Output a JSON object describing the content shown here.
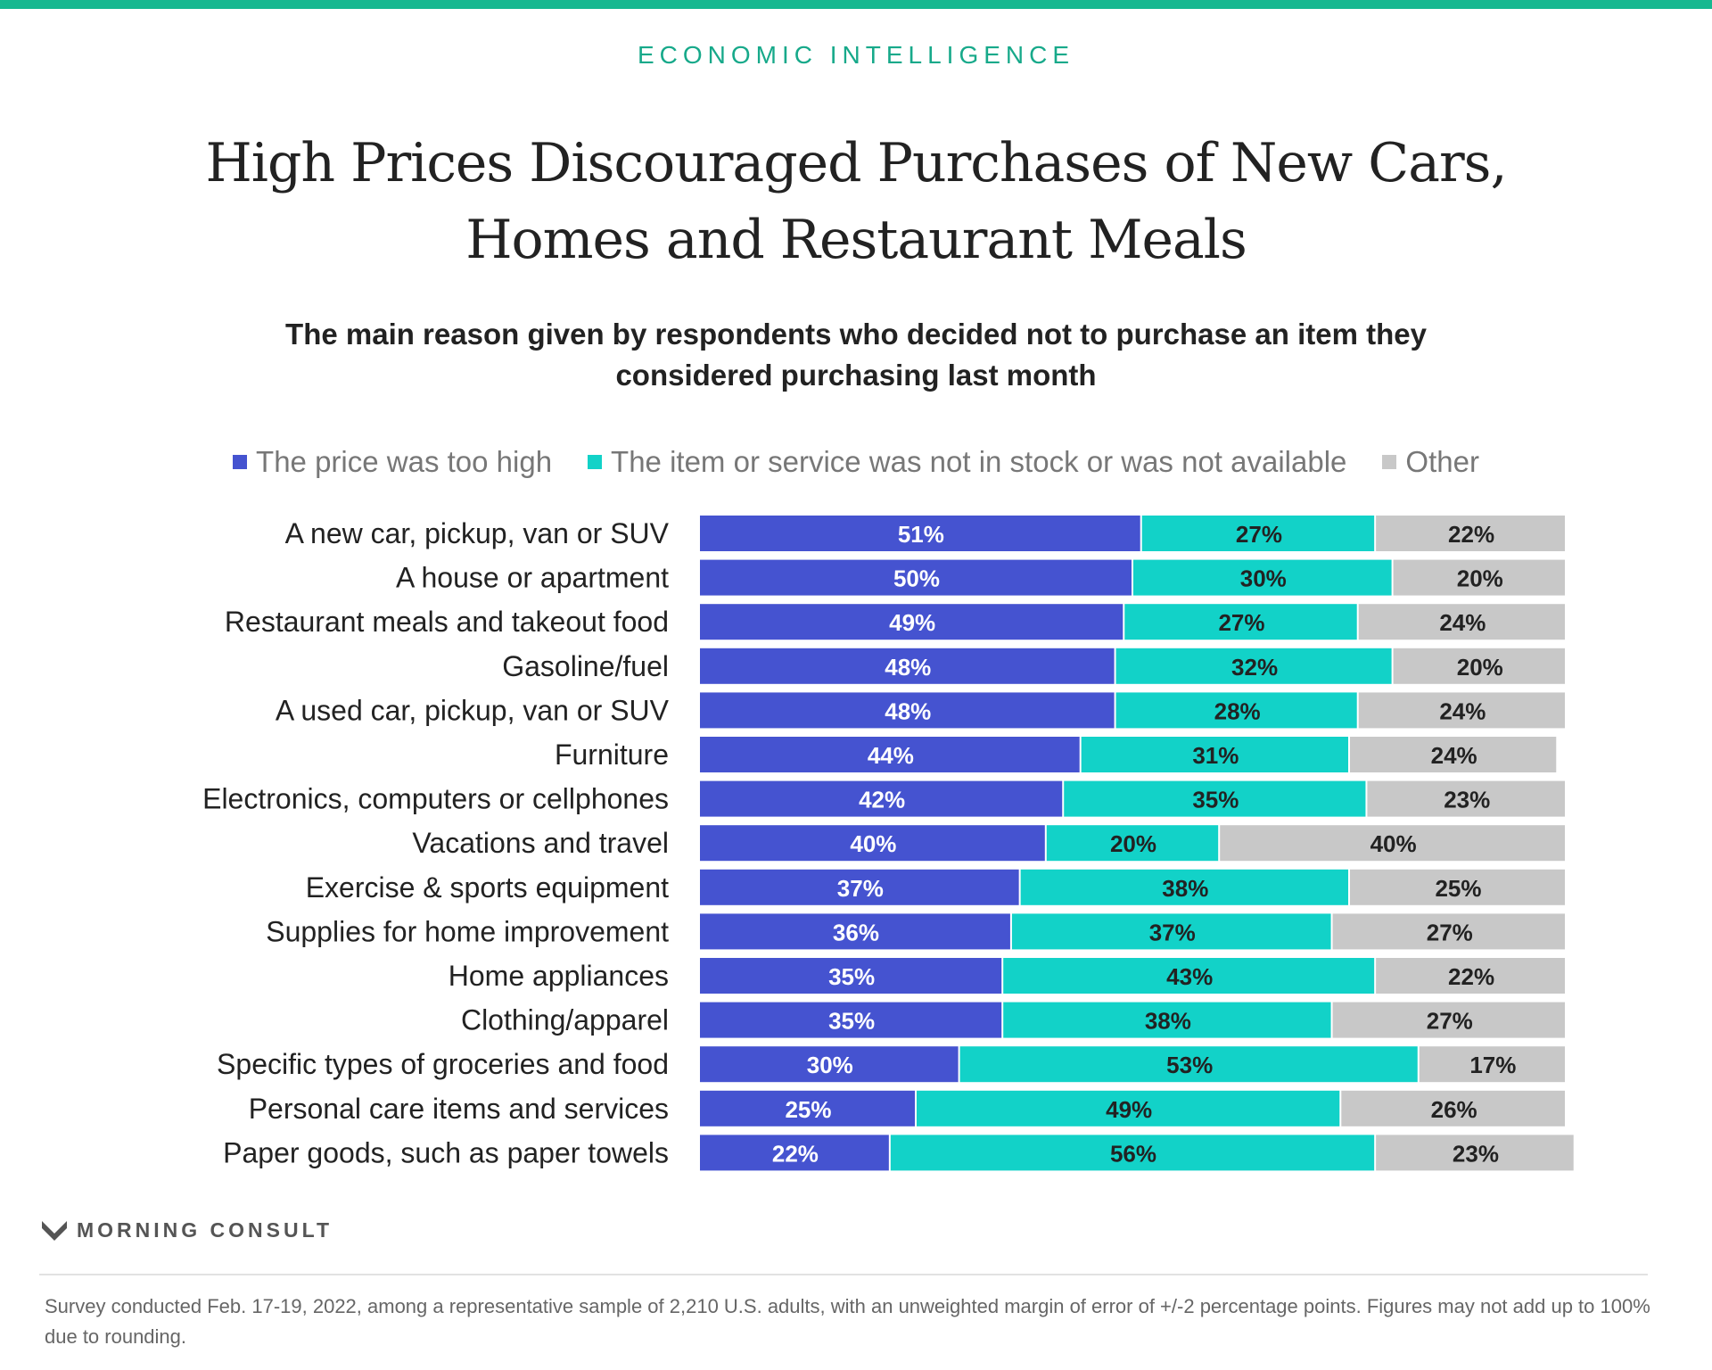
{
  "header": {
    "kicker": "ECONOMIC INTELLIGENCE",
    "title": "High Prices Discouraged Purchases of New Cars, Homes and Restaurant Meals",
    "subtitle": "The main reason given by respondents who decided not to purchase an item they considered purchasing last month"
  },
  "legend": [
    {
      "label": "The price was too high",
      "color": "#4553d0"
    },
    {
      "label": "The item or service was not in stock or was not available",
      "color": "#12d2c8"
    },
    {
      "label": "Other",
      "color": "#c8c8c8"
    }
  ],
  "chart_data": {
    "type": "bar",
    "orientation": "horizontal",
    "stacked": true,
    "xlim": [
      0,
      100
    ],
    "categories": [
      "A new car, pickup, van or SUV",
      "A house or apartment",
      "Restaurant meals and takeout food",
      "Gasoline/fuel",
      "A used car, pickup, van or SUV",
      "Furniture",
      "Electronics, computers or cellphones",
      "Vacations and travel",
      "Exercise & sports equipment",
      "Supplies for home improvement",
      "Home appliances",
      "Clothing/apparel",
      "Specific types of groceries and food",
      "Personal care items and services",
      "Paper goods, such as paper towels"
    ],
    "series": [
      {
        "name": "The price was too high",
        "color": "#4553d0",
        "label_color": "#ffffff",
        "values": [
          51,
          50,
          49,
          48,
          48,
          44,
          42,
          40,
          37,
          36,
          35,
          35,
          30,
          25,
          22
        ]
      },
      {
        "name": "The item or service was not in stock or was not available",
        "color": "#12d2c8",
        "label_color": "#222222",
        "values": [
          27,
          30,
          27,
          32,
          28,
          31,
          35,
          20,
          38,
          37,
          43,
          38,
          53,
          49,
          56
        ]
      },
      {
        "name": "Other",
        "color": "#c8c8c8",
        "label_color": "#222222",
        "values": [
          22,
          20,
          24,
          20,
          24,
          24,
          23,
          40,
          25,
          27,
          22,
          27,
          17,
          26,
          23
        ]
      }
    ],
    "value_suffix": "%",
    "grid": false,
    "legend_position": "top"
  },
  "brand": {
    "name": "MORNING CONSULT"
  },
  "footnote": "Survey conducted Feb. 17-19, 2022, among a representative sample of 2,210 U.S. adults, with an unweighted margin of error of +/-2 percentage points. Figures may not add up to 100% due to rounding."
}
